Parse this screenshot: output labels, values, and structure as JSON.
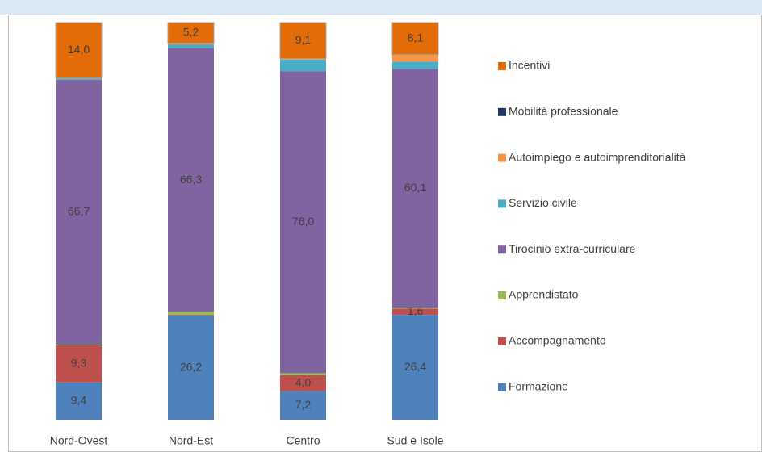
{
  "chart_data": {
    "type": "stacked-bar",
    "categories": [
      "Nord-Ovest",
      "Nord-Est",
      "Centro",
      "Sud e Isole"
    ],
    "ylim": [
      0,
      100
    ],
    "series": [
      {
        "name": "Formazione",
        "color": "#4f81bd",
        "values": [
          9.4,
          26.2,
          7.2,
          26.4
        ],
        "value_labels": [
          "9,4",
          "26,2",
          "7,2",
          "26,4"
        ]
      },
      {
        "name": "Accompagnamento",
        "color": "#c0504d",
        "values": [
          9.3,
          0.2,
          4.0,
          1.6
        ],
        "value_labels": [
          "9,3",
          null,
          "4,0",
          "1,6"
        ]
      },
      {
        "name": "Apprendistato",
        "color": "#9bbb59",
        "values": [
          0.2,
          0.8,
          0.5,
          0.2
        ],
        "value_labels": [
          null,
          null,
          null,
          null
        ]
      },
      {
        "name": "Tirocinio extra-curriculare",
        "color": "#8064a2",
        "values": [
          66.7,
          66.3,
          76.0,
          60.1
        ],
        "value_labels": [
          "66,7",
          "66,3",
          "76,0",
          "60,1"
        ]
      },
      {
        "name": "Servizio civile",
        "color": "#4bacc6",
        "values": [
          0.4,
          1.0,
          3.0,
          1.9
        ],
        "value_labels": [
          null,
          null,
          null,
          null
        ]
      },
      {
        "name": "Autoimpiego e autoimprenditorialità",
        "color": "#f79646",
        "values": [
          0.0,
          0.3,
          0.2,
          1.7
        ],
        "value_labels": [
          null,
          null,
          null,
          null
        ]
      },
      {
        "name": "Mobilità professionale",
        "color": "#1f3864",
        "values": [
          0.0,
          0.0,
          0.0,
          0.0
        ],
        "value_labels": [
          null,
          null,
          null,
          null
        ]
      },
      {
        "name": "Incentivi",
        "color": "#e36c09",
        "values": [
          14.0,
          5.2,
          9.1,
          8.1
        ],
        "value_labels": [
          "14,0",
          "5,2",
          "9,1",
          "8,1"
        ]
      }
    ]
  }
}
